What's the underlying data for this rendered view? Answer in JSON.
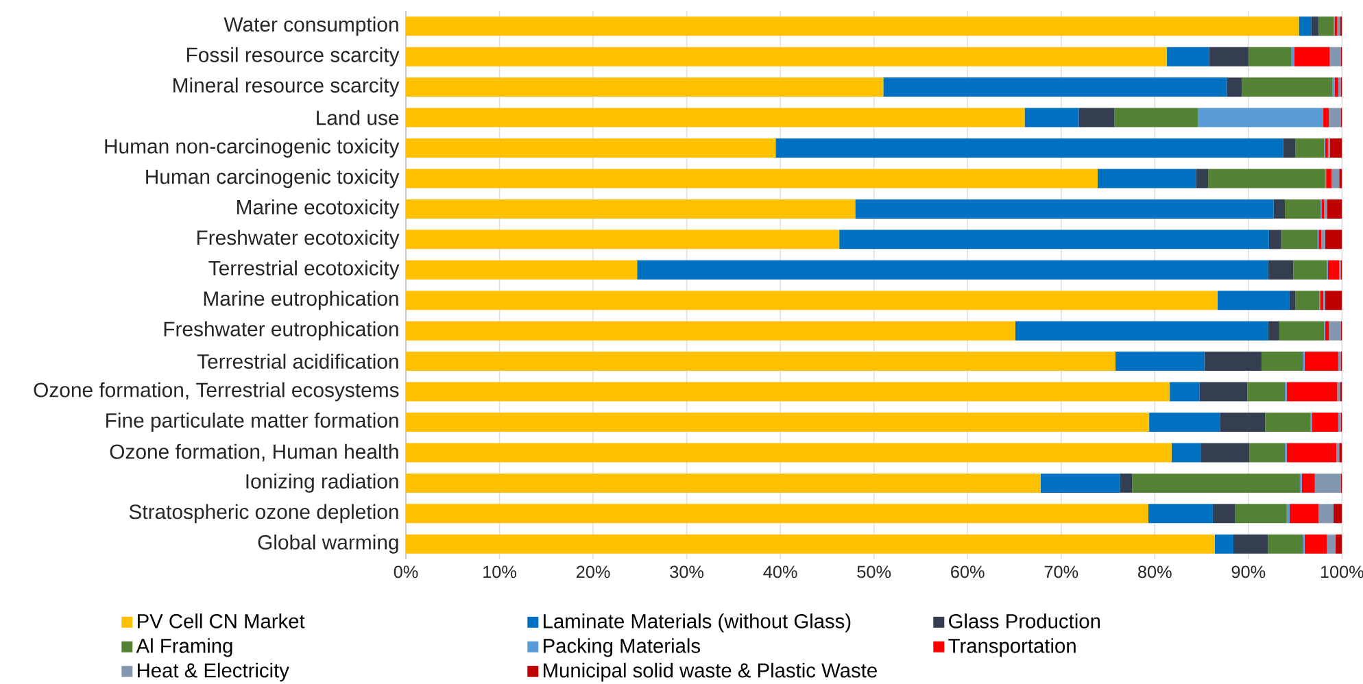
{
  "chart_data": {
    "type": "bar",
    "orientation": "horizontal",
    "stacked": true,
    "categories": [
      "Water consumption",
      "Fossil resource scarcity",
      "Mineral resource scarcity",
      "Land use",
      "Human non-carcinogenic toxicity",
      "Human carcinogenic toxicity",
      "Marine ecotoxicity",
      "Freshwater ecotoxicity",
      "Terrestrial ecotoxicity",
      "Marine eutrophication",
      "Freshwater eutrophication",
      "Terrestrial acidification",
      "Ozone formation, Terrestrial ecosystems",
      "Fine particulate matter formation",
      "Ozone formation, Human health",
      "Ionizing radiation",
      "Stratospheric ozone depletion",
      "Global warming"
    ],
    "series": [
      {
        "name": "PV Cell CN Market",
        "color": "#ffc000",
        "values": [
          95.4,
          81.3,
          51.0,
          66.1,
          39.5,
          73.9,
          48.0,
          46.3,
          24.7,
          86.7,
          65.1,
          75.8,
          81.6,
          79.4,
          81.8,
          67.8,
          79.3,
          86.4
        ]
      },
      {
        "name": "Laminate Materials (without Glass)",
        "color": "#0070c0",
        "values": [
          1.3,
          4.5,
          36.7,
          5.8,
          54.2,
          10.5,
          44.7,
          45.9,
          67.4,
          7.7,
          27.0,
          9.5,
          3.2,
          7.6,
          3.1,
          8.5,
          6.9,
          2.0
        ]
      },
      {
        "name": "Glass Production",
        "color": "#333f50",
        "values": [
          0.8,
          4.2,
          1.6,
          3.8,
          1.3,
          1.3,
          1.2,
          1.3,
          2.7,
          0.6,
          1.2,
          6.1,
          5.1,
          4.8,
          5.2,
          1.3,
          2.4,
          3.7
        ]
      },
      {
        "name": "Al Framing",
        "color": "#548235",
        "values": [
          1.6,
          4.6,
          9.7,
          8.9,
          3.1,
          12.5,
          3.8,
          3.9,
          3.6,
          2.6,
          4.8,
          4.4,
          4.0,
          4.8,
          3.8,
          17.9,
          5.5,
          3.7
        ]
      },
      {
        "name": "Packing Materials",
        "color": "#5b9bd5",
        "values": [
          0.1,
          0.3,
          0.2,
          13.4,
          0.1,
          0.1,
          0.1,
          0.1,
          0.1,
          0.1,
          0.1,
          0.2,
          0.2,
          0.2,
          0.2,
          0.2,
          0.3,
          0.2
        ]
      },
      {
        "name": "Transportation",
        "color": "#ff0000",
        "values": [
          0.3,
          3.8,
          0.4,
          0.6,
          0.3,
          0.6,
          0.3,
          0.3,
          1.2,
          0.3,
          0.4,
          3.6,
          5.4,
          2.8,
          5.3,
          1.4,
          3.1,
          2.4
        ]
      },
      {
        "name": "Heat & Electricity",
        "color": "#8497b0",
        "values": [
          0.3,
          1.2,
          0.3,
          1.3,
          0.2,
          0.8,
          0.3,
          0.4,
          0.2,
          0.2,
          1.3,
          0.3,
          0.3,
          0.3,
          0.3,
          2.8,
          1.6,
          0.9
        ]
      },
      {
        "name": "Municipal solid waste  & Plastic Waste",
        "color": "#c00000",
        "values": [
          0.2,
          0.1,
          0.1,
          0.1,
          1.3,
          0.3,
          1.6,
          1.8,
          0.1,
          1.8,
          0.1,
          0.1,
          0.2,
          0.1,
          0.3,
          0.1,
          0.9,
          0.7
        ]
      }
    ],
    "xlim": [
      0,
      100
    ],
    "xticks": [
      {
        "value": 0,
        "label": "0%"
      },
      {
        "value": 10,
        "label": "10%"
      },
      {
        "value": 20,
        "label": "20%"
      },
      {
        "value": 30,
        "label": "30%"
      },
      {
        "value": 40,
        "label": "40%"
      },
      {
        "value": 50,
        "label": "50%"
      },
      {
        "value": 60,
        "label": "60%"
      },
      {
        "value": 70,
        "label": "70%"
      },
      {
        "value": 80,
        "label": "80%"
      },
      {
        "value": 90,
        "label": "90%"
      },
      {
        "value": 100,
        "label": "100%"
      }
    ],
    "grid": "x",
    "legend": "bottom"
  }
}
